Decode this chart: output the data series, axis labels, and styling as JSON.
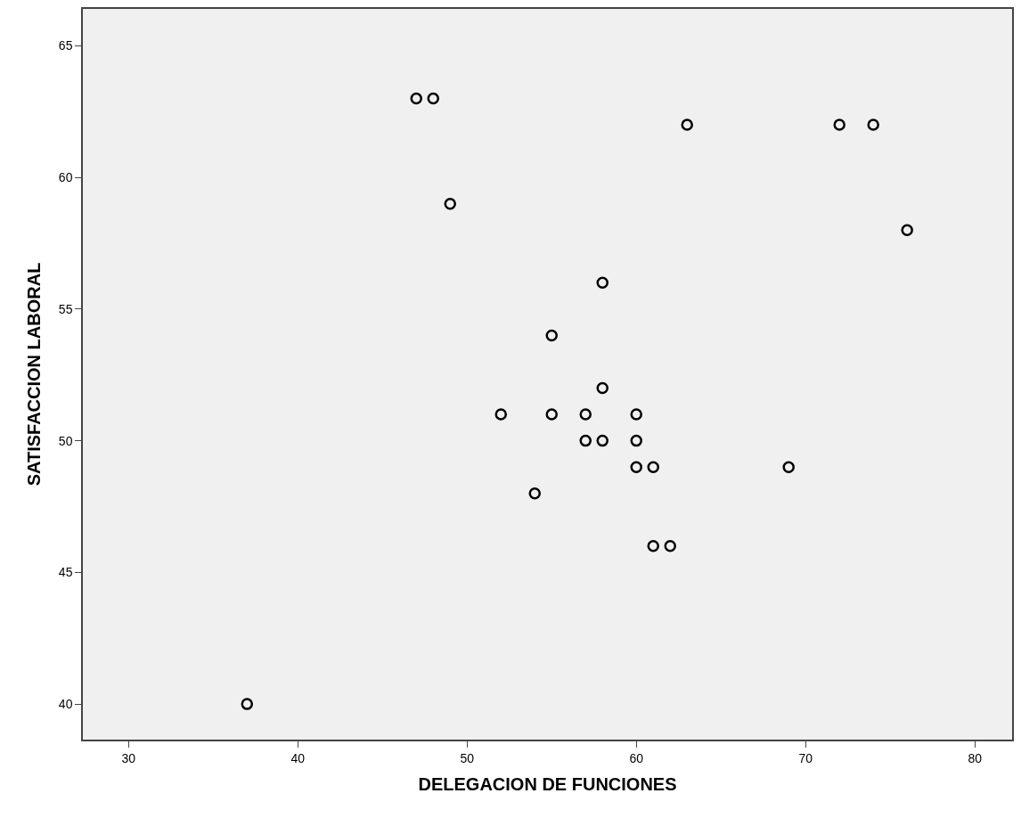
{
  "chart_data": {
    "type": "scatter",
    "xlabel": "DELEGACION DE FUNCIONES",
    "ylabel": "SATISFACCION LABORAL",
    "x": [
      47,
      48,
      63,
      72,
      74,
      49,
      76,
      58,
      55,
      58,
      52,
      55,
      57,
      60,
      57,
      58,
      60,
      60,
      61,
      69,
      54,
      61,
      62,
      37
    ],
    "series": [
      {
        "color": "#000000",
        "values": [
          63,
          63,
          62,
          62,
          62,
          59,
          58,
          56,
          54,
          52,
          51,
          51,
          51,
          51,
          50,
          50,
          50,
          49,
          49,
          49,
          48,
          46,
          46,
          40
        ]
      }
    ],
    "xlim": [
      27.3,
      82.2
    ],
    "ylim": [
      38.65,
      66.4
    ],
    "xticks": [
      30,
      40,
      50,
      60,
      70,
      80
    ],
    "yticks": [
      40,
      45,
      50,
      55,
      60,
      65
    ],
    "grid": false,
    "marker": "circle"
  }
}
